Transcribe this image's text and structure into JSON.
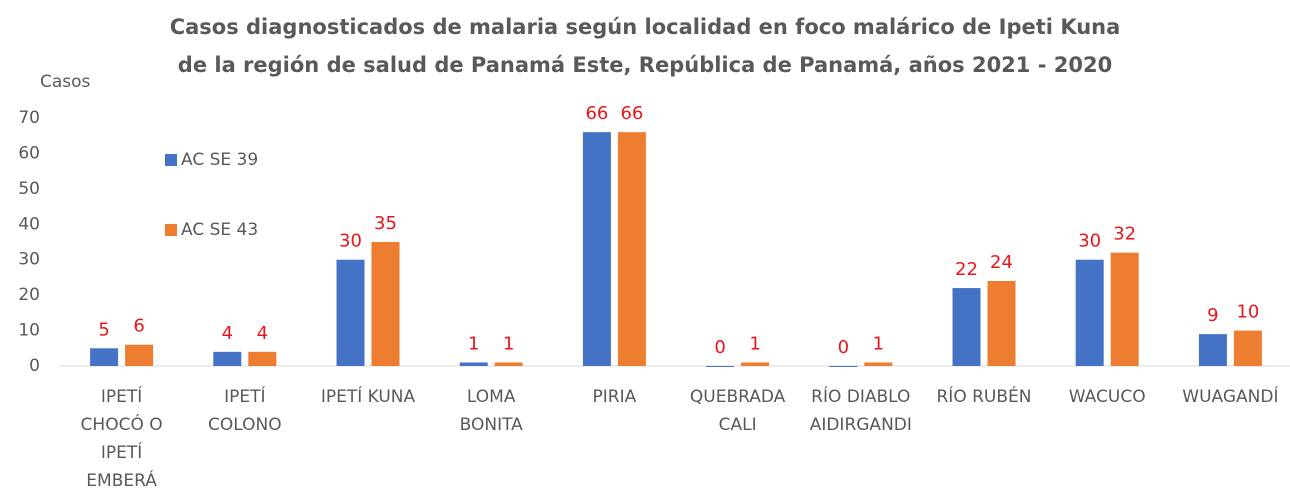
{
  "chart_data": {
    "type": "bar",
    "title": "Casos diagnosticados de malaria según localidad en foco malárico de Ipeti Kuna",
    "subtitle": "de la región de salud de Panamá Este, República de Panamá, años 2021 - 2020",
    "y_label": "Casos",
    "categories": [
      "IPETÍ CHOCÓ O IPETÍ EMBERÁ",
      "IPETÍ COLONO",
      "IPETÍ KUNA",
      "LOMA BONITA",
      "PIRIA",
      "QUEBRADA CALI",
      "RÍO DIABLO AIDIRGANDI",
      "RÍO RUBÉN",
      "WACUCO",
      "WUAGANDÍ"
    ],
    "series": [
      {
        "name": "AC SE 39",
        "color": "#4472c4",
        "values": [
          5,
          4,
          30,
          1,
          66,
          0,
          0,
          22,
          30,
          9
        ]
      },
      {
        "name": "AC SE 43",
        "color": "#ed7d31",
        "values": [
          6,
          4,
          35,
          1,
          66,
          1,
          1,
          24,
          32,
          10
        ]
      }
    ],
    "ylim": [
      0,
      70
    ],
    "yticks": [
      0,
      10,
      20,
      30,
      40,
      50,
      60,
      70
    ],
    "grid": false,
    "legend": "upper left"
  }
}
